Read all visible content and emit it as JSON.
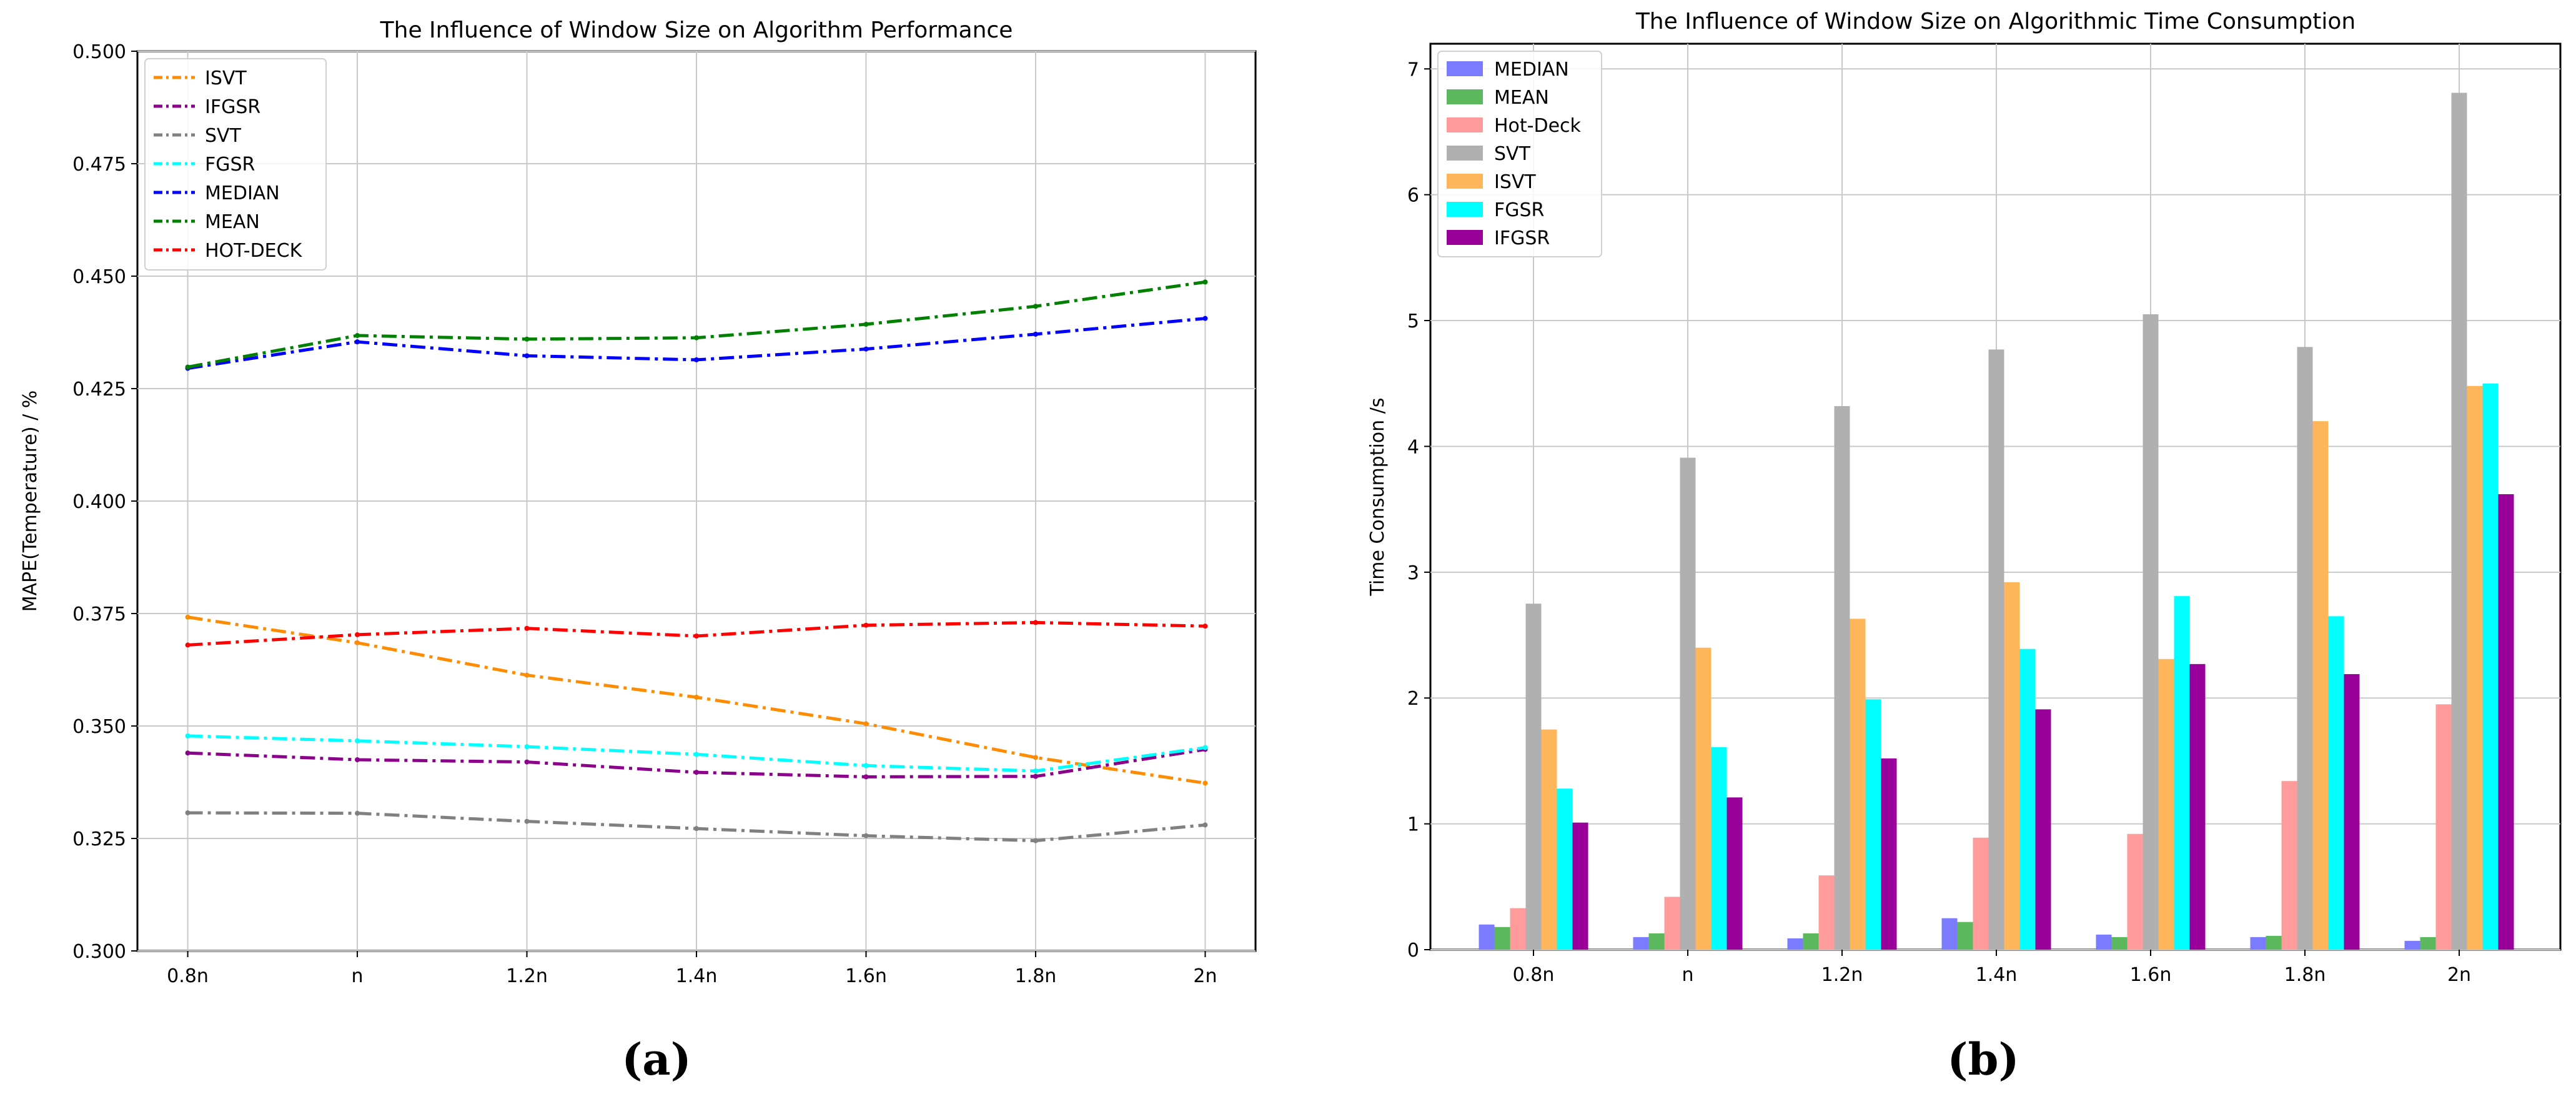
{
  "panel_labels": [
    "(a)",
    "(b)"
  ],
  "chart_data": [
    {
      "type": "line",
      "title": "The Influence of Window Size on Algorithm Performance",
      "xlabel": "",
      "ylabel": "MAPE(Temperature) / %",
      "categories": [
        "0.8n",
        "n",
        "1.2n",
        "1.4n",
        "1.6n",
        "1.8n",
        "2n"
      ],
      "ylim": [
        0.3,
        0.5
      ],
      "yticks": [
        "0.300",
        "0.325",
        "0.350",
        "0.375",
        "0.400",
        "0.425",
        "0.450",
        "0.475",
        "0.500"
      ],
      "grid": true,
      "legend_position": "top-left",
      "series": [
        {
          "name": "ISVT",
          "color": "#ff8c00",
          "values": [
            0.3742,
            0.3685,
            0.3613,
            0.3564,
            0.3505,
            0.343,
            0.3373
          ]
        },
        {
          "name": "IFGSR",
          "color": "#8b008b",
          "values": [
            0.344,
            0.3425,
            0.342,
            0.3397,
            0.3387,
            0.3388,
            0.3448
          ]
        },
        {
          "name": "SVT",
          "color": "#808080",
          "values": [
            0.3307,
            0.3306,
            0.3288,
            0.3272,
            0.3256,
            0.3245,
            0.328
          ]
        },
        {
          "name": "FGSR",
          "color": "#00ffff",
          "values": [
            0.3478,
            0.3467,
            0.3454,
            0.3437,
            0.3412,
            0.34,
            0.3452
          ]
        },
        {
          "name": "MEDIAN",
          "color": "#0000ff",
          "values": [
            0.4295,
            0.4354,
            0.4323,
            0.4314,
            0.4338,
            0.4371,
            0.4406
          ]
        },
        {
          "name": "MEAN",
          "color": "#008000",
          "values": [
            0.4298,
            0.4368,
            0.436,
            0.4363,
            0.4393,
            0.4433,
            0.4487
          ]
        },
        {
          "name": "HOT-DECK",
          "color": "#ff0000",
          "values": [
            0.368,
            0.3703,
            0.3717,
            0.37,
            0.3724,
            0.373,
            0.3722
          ]
        }
      ]
    },
    {
      "type": "bar",
      "title": "The Influence of Window Size on Algorithmic Time Consumption",
      "xlabel": "",
      "ylabel": "Time Consumption /s",
      "categories": [
        "0.8n",
        "n",
        "1.2n",
        "1.4n",
        "1.6n",
        "1.8n",
        "2n"
      ],
      "ylim": [
        0,
        7.2
      ],
      "yticks": [
        "0",
        "1",
        "2",
        "3",
        "4",
        "5",
        "6",
        "7"
      ],
      "grid": true,
      "legend_position": "top-left",
      "series": [
        {
          "name": "MEDIAN",
          "color": "#7b7bff",
          "values": [
            0.2,
            0.1,
            0.09,
            0.25,
            0.12,
            0.1,
            0.07
          ]
        },
        {
          "name": "MEAN",
          "color": "#5cb85c",
          "values": [
            0.18,
            0.13,
            0.13,
            0.22,
            0.1,
            0.11,
            0.1
          ]
        },
        {
          "name": "Hot-Deck",
          "color": "#ff9b9b",
          "values": [
            0.33,
            0.42,
            0.59,
            0.89,
            0.92,
            1.34,
            1.95
          ]
        },
        {
          "name": "SVT",
          "color": "#b0b0b0",
          "values": [
            2.75,
            3.91,
            4.32,
            4.77,
            5.05,
            4.79,
            6.81
          ]
        },
        {
          "name": "ISVT",
          "color": "#ffb55a",
          "values": [
            1.75,
            2.4,
            2.63,
            2.92,
            2.31,
            4.2,
            4.48
          ]
        },
        {
          "name": "FGSR",
          "color": "#00ffff",
          "values": [
            1.28,
            1.61,
            1.99,
            2.39,
            2.81,
            2.65,
            4.5
          ]
        },
        {
          "name": "IFGSR",
          "color": "#990099",
          "values": [
            1.01,
            1.21,
            1.52,
            1.91,
            2.27,
            2.19,
            3.62
          ]
        }
      ]
    }
  ]
}
